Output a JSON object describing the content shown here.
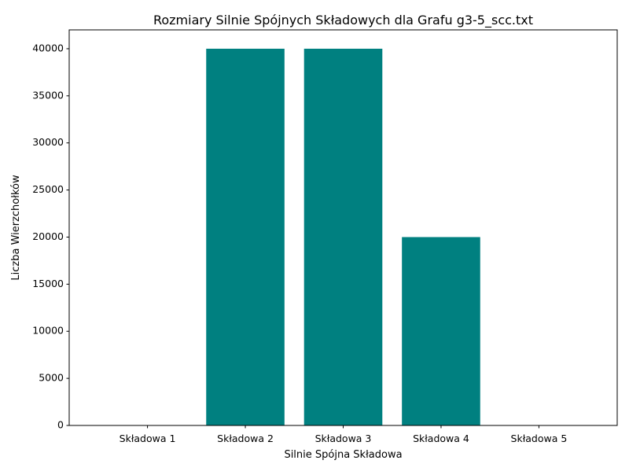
{
  "chart_data": {
    "type": "bar",
    "title": "Rozmiary Silnie Spójnych Składowych dla Grafu g3-5_scc.txt",
    "xlabel": "Silnie Spójna Składowa",
    "ylabel": "Liczba Wierzchołków",
    "categories": [
      "Składowa 1",
      "Składowa 2",
      "Składowa 3",
      "Składowa 4",
      "Składowa 5"
    ],
    "values": [
      1,
      40000,
      40000,
      20000,
      1
    ],
    "ylim": [
      0,
      42000
    ],
    "yticks": [
      0,
      5000,
      10000,
      15000,
      20000,
      25000,
      30000,
      35000,
      40000
    ],
    "grid": false,
    "legend": "none",
    "bar_color": "#008080"
  }
}
